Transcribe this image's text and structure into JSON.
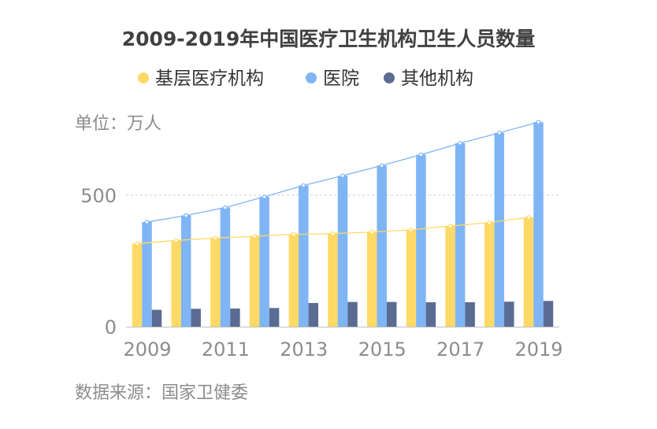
{
  "chart_data": {
    "type": "bar",
    "title": "2009-2019年中国医疗卫生机构卫生人员数量",
    "unit_label": "单位：万人",
    "source": "数据来源：国家卫健委",
    "categories": [
      "2009",
      "2010",
      "2011",
      "2012",
      "2013",
      "2014",
      "2015",
      "2016",
      "2017",
      "2018",
      "2019"
    ],
    "x_tick_labels": [
      "2009",
      "",
      "2011",
      "",
      "2013",
      "",
      "2015",
      "",
      "2017",
      "",
      "2019"
    ],
    "y_ticks": [
      {
        "value": 0,
        "label": "0"
      },
      {
        "value": 500,
        "label": "500"
      }
    ],
    "ylim": [
      0,
      800
    ],
    "grid": "dashed line at 500",
    "legend_position": "top",
    "series": [
      {
        "name": "基层医疗机构",
        "color": "#ffd966",
        "values": [
          316,
          328,
          337,
          344,
          351,
          354,
          360,
          368,
          383,
          396,
          416
        ]
      },
      {
        "name": "医院",
        "color": "#7fb5f5",
        "values": [
          398,
          423,
          453,
          494,
          537,
          574,
          613,
          654,
          698,
          737,
          778
        ]
      },
      {
        "name": "其他机构",
        "color": "#5b6c93",
        "values": [
          64,
          68,
          69,
          71,
          90,
          94,
          94,
          93,
          93,
          95,
          98
        ]
      }
    ],
    "trendlines": [
      {
        "series": "基层医疗机构",
        "color": "#ffd966"
      },
      {
        "series": "医院",
        "color": "#7fb5f5"
      }
    ]
  }
}
